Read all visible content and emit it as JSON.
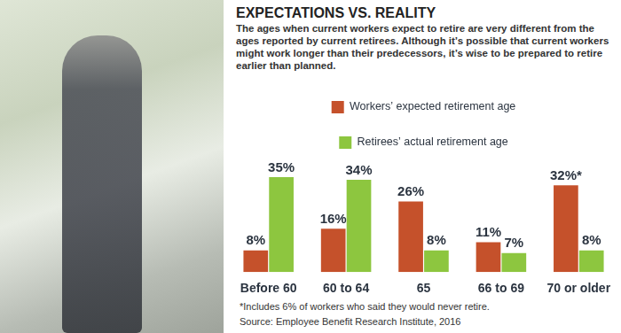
{
  "chart_data": {
    "type": "bar",
    "title": "EXPECTATIONS VS. REALITY",
    "subtitle": "The ages when current workers expect to retire are very different from the ages reported by current retirees. Although it’s possible that current workers might work longer than their predecessors, it’s wise to be prepared to retire earlier than planned.",
    "categories": [
      "Before 60",
      "60 to 64",
      "65",
      "66 to 69",
      "70 or older"
    ],
    "series": [
      {
        "name": "Workers’ expected retirement age",
        "color": "#c5512b",
        "values": [
          8,
          16,
          26,
          11,
          32
        ],
        "value_labels": [
          "8%",
          "16%",
          "26%",
          "11%",
          "32%*"
        ]
      },
      {
        "name": "Retirees’ actual retirement age",
        "color": "#8dc63f",
        "values": [
          35,
          34,
          8,
          7,
          8
        ],
        "value_labels": [
          "35%",
          "34%",
          "8%",
          "7%",
          "8%"
        ]
      }
    ],
    "ylim": [
      0,
      35
    ],
    "grid": false,
    "legend": "top",
    "data_labels": true,
    "tick_labels": "x",
    "footnote": "*Includes 6% of workers who said they would never retire.",
    "source": "Source: Employee Benefit Research Institute, 2016"
  }
}
